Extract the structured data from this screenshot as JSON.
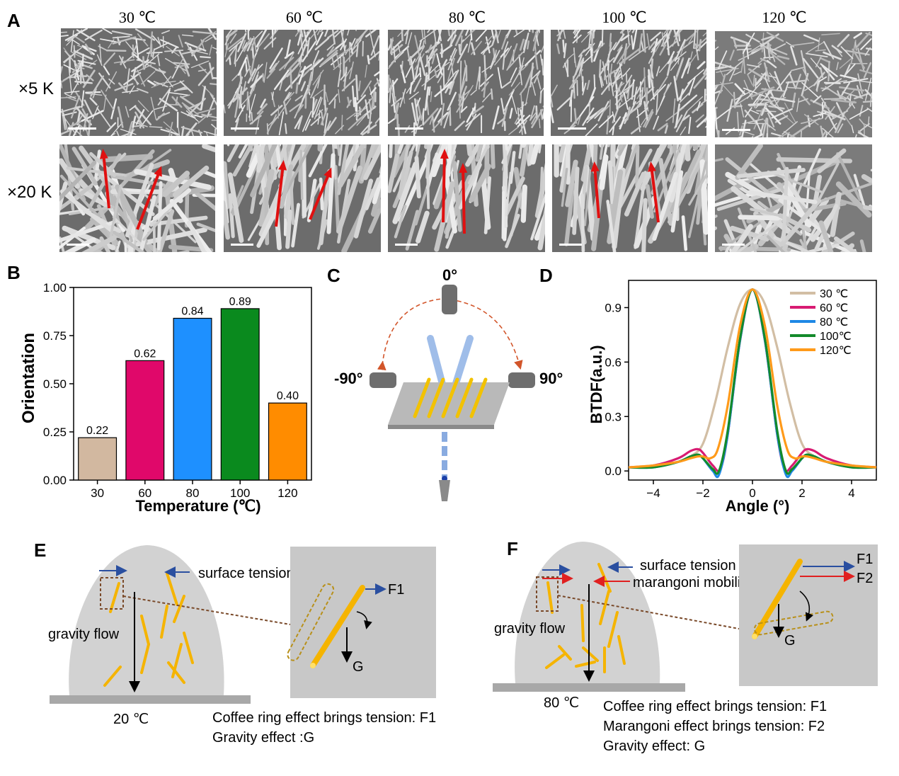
{
  "panel_a": {
    "letter": "A",
    "temperatures": [
      "30 ℃",
      "60 ℃",
      "80 ℃",
      "100 ℃",
      "120 ℃"
    ],
    "row_labels": [
      "×5 K",
      "×20 K"
    ]
  },
  "panel_b": {
    "letter": "B",
    "chart_data": {
      "type": "bar",
      "categories": [
        "30",
        "60",
        "80",
        "100",
        "120"
      ],
      "values": [
        0.22,
        0.62,
        0.84,
        0.89,
        0.4
      ],
      "value_labels": [
        "0.22",
        "0.62",
        "0.84",
        "0.89",
        "0.40"
      ],
      "colors": [
        "#d2b8a0",
        "#e0086a",
        "#1e90ff",
        "#0a8a1e",
        "#ff8c00"
      ],
      "xlabel": "Temperature (℃)",
      "ylabel": "Orientation",
      "ylim": [
        0,
        1.0
      ],
      "yticks": [
        "0.00",
        "0.25",
        "0.50",
        "0.75",
        "1.00"
      ]
    }
  },
  "panel_c": {
    "letter": "C",
    "angles": [
      "0°",
      "-90°",
      "90°"
    ]
  },
  "panel_d": {
    "letter": "D",
    "chart_data": {
      "type": "line",
      "xlabel": "Angle (°)",
      "ylabel": "BTDF(a.u.)",
      "xlim": [
        -5,
        5
      ],
      "ylim": [
        -0.05,
        1.05
      ],
      "xticks": [
        "−4",
        "−2",
        "0",
        "2",
        "4"
      ],
      "yticks": [
        "0.0",
        "0.3",
        "0.6",
        "0.9"
      ],
      "legend_position": "top-right",
      "series": [
        {
          "name": "30 ℃",
          "color": "#d2bea4",
          "x": [
            -5,
            -4,
            -3,
            -2.5,
            -2,
            -1.5,
            -1,
            -0.5,
            0,
            0.5,
            1,
            1.5,
            2,
            2.5,
            3,
            4,
            5
          ],
          "y": [
            0.02,
            0.03,
            0.05,
            0.08,
            0.15,
            0.38,
            0.68,
            0.92,
            1.0,
            0.92,
            0.68,
            0.38,
            0.15,
            0.08,
            0.05,
            0.03,
            0.02
          ]
        },
        {
          "name": "60 ℃",
          "color": "#d81b72",
          "x": [
            -5,
            -4,
            -3,
            -2.5,
            -2.2,
            -2,
            -1.6,
            -1.3,
            -1,
            -0.5,
            0,
            0.5,
            1,
            1.3,
            1.6,
            2,
            2.2,
            2.5,
            3,
            4,
            5
          ],
          "y": [
            0.02,
            0.03,
            0.07,
            0.11,
            0.12,
            0.1,
            0.03,
            0.01,
            0.2,
            0.72,
            1.0,
            0.72,
            0.2,
            0.01,
            0.03,
            0.1,
            0.12,
            0.11,
            0.07,
            0.03,
            0.02
          ]
        },
        {
          "name": "80 ℃",
          "color": "#1e88e5",
          "x": [
            -5,
            -4,
            -3,
            -2.5,
            -2.2,
            -2,
            -1.6,
            -1.35,
            -1,
            -0.5,
            0,
            0.5,
            1,
            1.35,
            1.6,
            2,
            2.2,
            2.5,
            3,
            4,
            5
          ],
          "y": [
            0.02,
            0.02,
            0.05,
            0.08,
            0.09,
            0.07,
            0.0,
            -0.02,
            0.2,
            0.72,
            1.0,
            0.72,
            0.2,
            -0.02,
            0.0,
            0.07,
            0.09,
            0.08,
            0.05,
            0.02,
            0.02
          ]
        },
        {
          "name": "100℃",
          "color": "#138a2b",
          "x": [
            -5,
            -4,
            -3,
            -2.5,
            -2.2,
            -2,
            -1.6,
            -1.35,
            -1,
            -0.5,
            0,
            0.5,
            1,
            1.35,
            1.6,
            2,
            2.2,
            2.5,
            3,
            4,
            5
          ],
          "y": [
            0.02,
            0.02,
            0.05,
            0.08,
            0.09,
            0.07,
            0.01,
            0.0,
            0.22,
            0.73,
            1.0,
            0.73,
            0.22,
            0.0,
            0.01,
            0.07,
            0.09,
            0.08,
            0.05,
            0.02,
            0.02
          ]
        },
        {
          "name": "120℃",
          "color": "#ff9a1a",
          "x": [
            -5,
            -4,
            -3,
            -2.5,
            -2.2,
            -2,
            -1.7,
            -1.4,
            -1,
            -0.5,
            0,
            0.5,
            1,
            1.4,
            1.7,
            2,
            2.2,
            2.5,
            3,
            4,
            5
          ],
          "y": [
            0.02,
            0.03,
            0.05,
            0.07,
            0.08,
            0.08,
            0.07,
            0.12,
            0.36,
            0.8,
            1.0,
            0.8,
            0.36,
            0.12,
            0.07,
            0.08,
            0.08,
            0.07,
            0.05,
            0.03,
            0.02
          ]
        }
      ]
    }
  },
  "panel_e": {
    "letter": "E",
    "surface_tension": "surface tension",
    "gravity_flow": "gravity flow",
    "temp": "20 ℃",
    "f1": "F1",
    "g": "G",
    "captions": [
      "Coffee ring effect brings tension: F1",
      "Gravity effect :G"
    ]
  },
  "panel_f": {
    "letter": "F",
    "surface_tension": "surface tension",
    "marangoni": "marangoni mobility",
    "gravity_flow": "gravity flow",
    "temp": "80 ℃",
    "f1": "F1",
    "f2": "F2",
    "g": "G",
    "captions": [
      "Coffee ring effect brings tension: F1",
      "Marangoni effect brings tension: F2",
      "Gravity effect: G"
    ]
  }
}
